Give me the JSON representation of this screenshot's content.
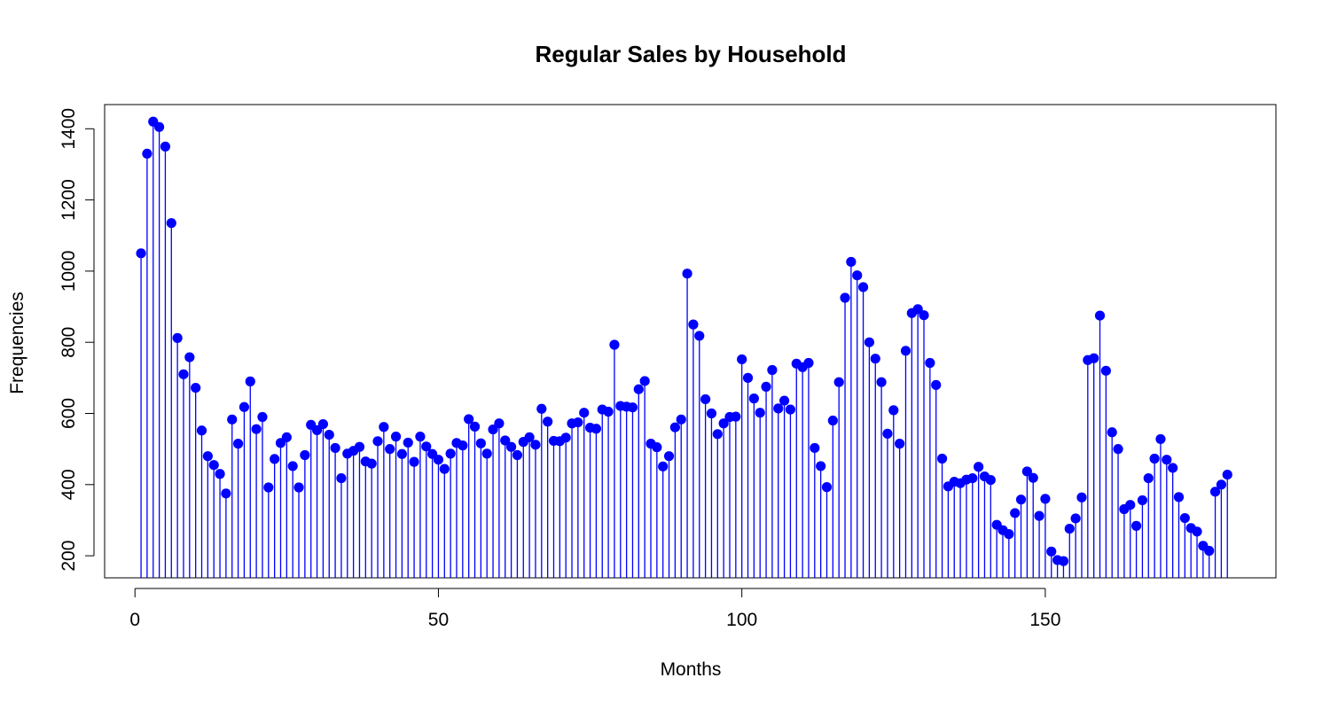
{
  "chart_data": {
    "type": "scatter",
    "style": "stem",
    "title": "Regular Sales by Household",
    "xlabel": "Months",
    "ylabel": "Frequencies",
    "xlim": [
      -5,
      188
    ],
    "ylim": [
      138,
      1468
    ],
    "x_ticks": [
      0,
      50,
      100,
      150
    ],
    "y_ticks": [
      200,
      400,
      600,
      800,
      1000,
      1200,
      1400
    ],
    "grid": false,
    "legend": "none",
    "color": "#0000ff",
    "series": [
      {
        "x": [
          1,
          2,
          3,
          4,
          5,
          6,
          7,
          8,
          9,
          10,
          11,
          12,
          13,
          14,
          15,
          16,
          17,
          18,
          19,
          20,
          21,
          22,
          23,
          24,
          25,
          26,
          27,
          28,
          29,
          30,
          31,
          32,
          33,
          34,
          35,
          36,
          37,
          38,
          39,
          40,
          41,
          42,
          43,
          44,
          45,
          46,
          47,
          48,
          49,
          50,
          51,
          52,
          53,
          54,
          55,
          56,
          57,
          58,
          59,
          60,
          61,
          62,
          63,
          64,
          65,
          66,
          67,
          68,
          69,
          70,
          71,
          72,
          73,
          74,
          75,
          76,
          77,
          78,
          79,
          80,
          81,
          82,
          83,
          84,
          85,
          86,
          87,
          88,
          89,
          90,
          91,
          92,
          93,
          94,
          95,
          96,
          97,
          98,
          99,
          100,
          101,
          102,
          103,
          104,
          105,
          106,
          107,
          108,
          109,
          110,
          111,
          112,
          113,
          114,
          115,
          116,
          117,
          118,
          119,
          120,
          121,
          122,
          123,
          124,
          125,
          126,
          127,
          128,
          129,
          130,
          131,
          132,
          133,
          134,
          135,
          136,
          137,
          138,
          139,
          140,
          141,
          142,
          143,
          144,
          145,
          146,
          147,
          148,
          149,
          150,
          151,
          152,
          153,
          154,
          155,
          156,
          157,
          158,
          159,
          160,
          161,
          162,
          163,
          164,
          165,
          166,
          167,
          168,
          169,
          170,
          171,
          172,
          173,
          174,
          175,
          176,
          177,
          178,
          179,
          180
        ],
        "values": [
          1050,
          1330,
          1420,
          1405,
          1350,
          1135,
          812,
          710,
          758,
          672,
          552,
          480,
          455,
          430,
          375,
          583,
          515,
          618,
          690,
          556,
          590,
          392,
          472,
          517,
          533,
          452,
          392,
          483,
          568,
          553,
          570,
          540,
          503,
          418,
          487,
          495,
          506,
          465,
          459,
          522,
          562,
          500,
          535,
          486,
          518,
          464,
          535,
          507,
          486,
          470,
          444,
          487,
          517,
          510,
          584,
          563,
          516,
          487,
          555,
          572,
          524,
          506,
          483,
          520,
          533,
          512,
          613,
          577,
          523,
          522,
          532,
          572,
          575,
          602,
          560,
          557,
          611,
          605,
          793,
          621,
          619,
          617,
          668,
          691,
          515,
          505,
          451,
          480,
          561,
          583,
          993,
          850,
          818,
          640,
          600,
          542,
          572,
          590,
          591,
          752,
          700,
          642,
          602,
          675,
          722,
          614,
          636,
          611,
          740,
          730,
          742,
          503,
          452,
          393,
          580,
          688,
          925,
          1026,
          988,
          955,
          800,
          754,
          688,
          543,
          609,
          515,
          776,
          882,
          893,
          876,
          742,
          680,
          473,
          395,
          408,
          404,
          414,
          418,
          450,
          423,
          413,
          287,
          272,
          261,
          320,
          358,
          437,
          419,
          312,
          360,
          212,
          188,
          185,
          276,
          305,
          364,
          750,
          755,
          875,
          720,
          547,
          500,
          331,
          343,
          284,
          356,
          418,
          473,
          528,
          470,
          447,
          365,
          306,
          278,
          268,
          228,
          214,
          380,
          400,
          428
        ]
      }
    ]
  }
}
